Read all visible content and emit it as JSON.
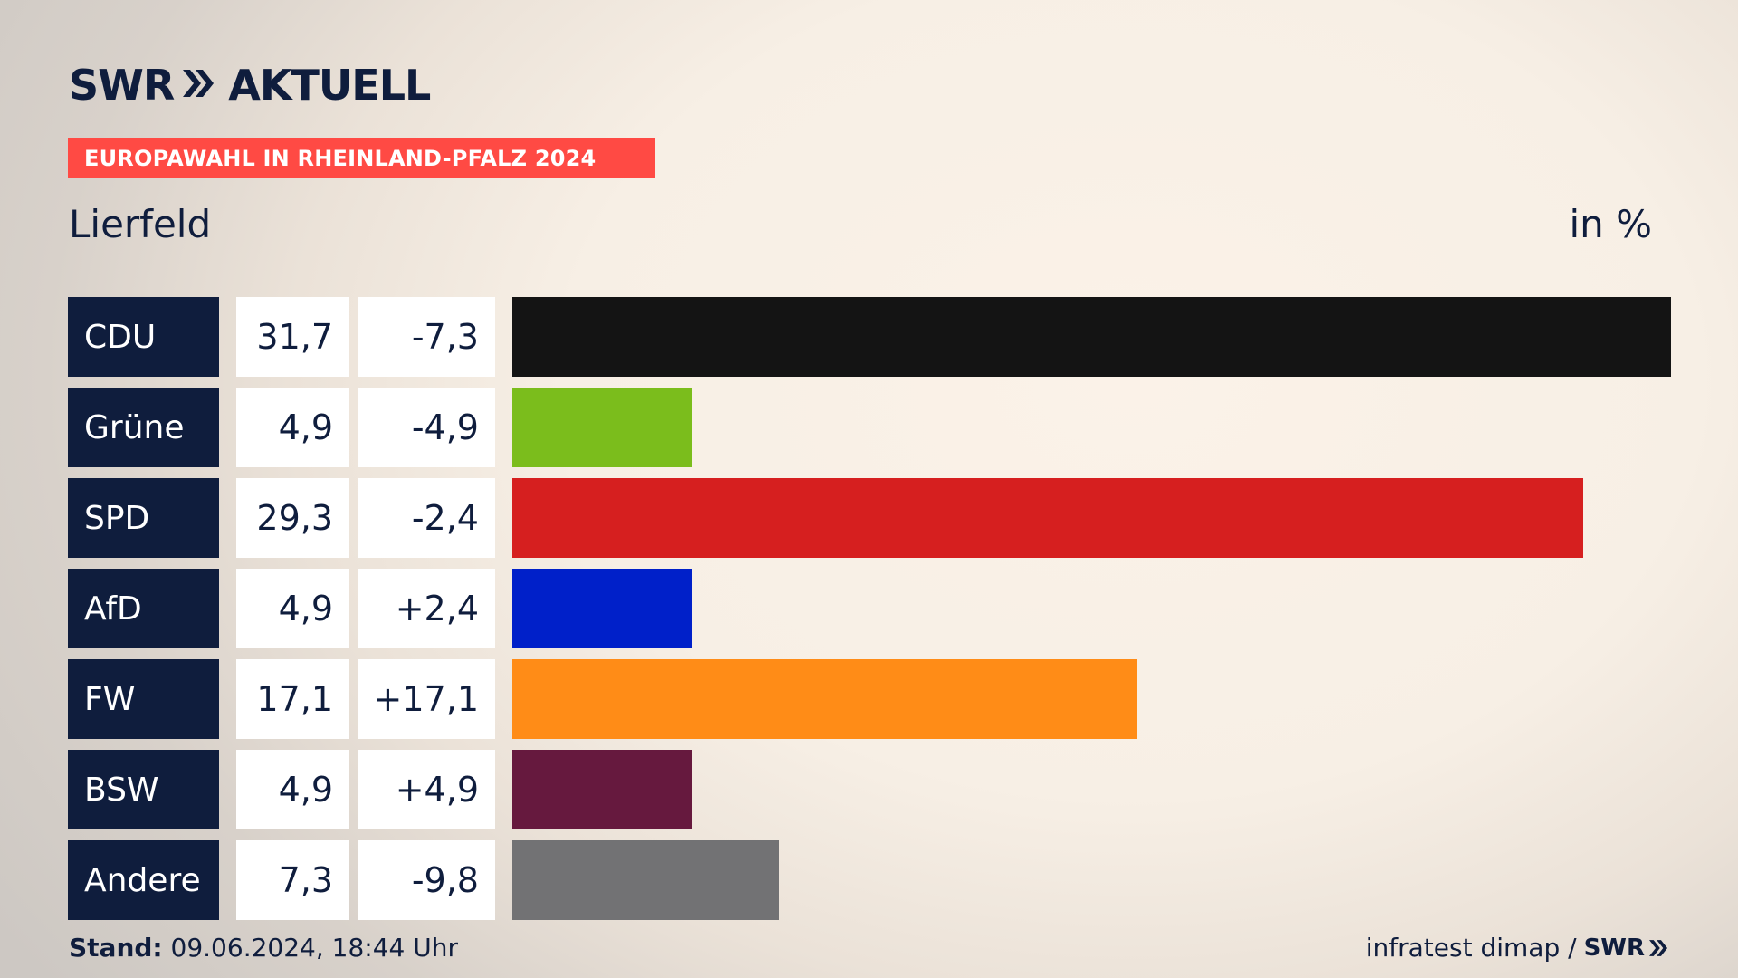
{
  "header": {
    "brand_left": "SWR",
    "brand_right": "AKTUELL",
    "election_title": "EUROPAWAHL IN RHEINLAND-PFALZ 2024",
    "location": "Lierfeld",
    "unit": "in %"
  },
  "footer": {
    "stand_label": "Stand:",
    "stand_value": "09.06.2024, 18:44 Uhr",
    "source": "infratest dimap /",
    "source_brand": "SWR"
  },
  "chart_data": {
    "type": "bar",
    "orientation": "horizontal",
    "categories": [
      "CDU",
      "Grüne",
      "SPD",
      "AfD",
      "FW",
      "BSW",
      "Andere"
    ],
    "values": [
      31.7,
      4.9,
      29.3,
      4.9,
      17.1,
      4.9,
      7.3
    ],
    "value_labels": [
      "31,7",
      "4,9",
      "29,3",
      "4,9",
      "17,1",
      "4,9",
      "7,3"
    ],
    "changes": [
      -7.3,
      -4.9,
      -2.4,
      2.4,
      17.1,
      4.9,
      -9.8
    ],
    "change_labels": [
      "-7,3",
      "-4,9",
      "-2,4",
      "+2,4",
      "+17,1",
      "+4,9",
      "-9,8"
    ],
    "colors": [
      "#141414",
      "#7bbd1c",
      "#d61f1f",
      "#0020c9",
      "#ff8c17",
      "#66193e",
      "#727274"
    ],
    "xlim": [
      0,
      31.7
    ],
    "grid": false,
    "legend": "none"
  },
  "colors": {
    "navy": "#0f1d3d",
    "banner": "#ff4a44"
  }
}
